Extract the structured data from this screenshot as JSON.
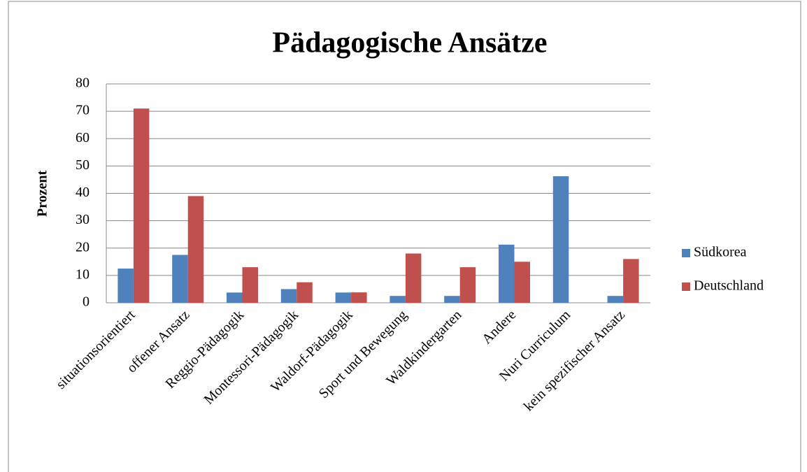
{
  "chart_data": {
    "type": "bar",
    "title": "Pädagogische Ansätze",
    "y_label": "Prozent",
    "categories": [
      "situationsorientiert",
      "offener Ansatz",
      "Reggio-Pädagogik",
      "Montessori-Pädagogik",
      "Waldorf-Pädagogik",
      "Sport und Bewegung",
      "Waldkindergarten",
      "Andere",
      "Nuri Curriculum",
      "kein spezifischer Ansatz"
    ],
    "series": [
      {
        "name": "Südkorea",
        "color": "#4f81bd",
        "values": [
          12.5,
          17.5,
          3.75,
          5,
          3.75,
          2.5,
          2.5,
          21.25,
          46.25,
          2.5
        ]
      },
      {
        "name": "Deutschland",
        "color": "#c0504d",
        "values": [
          71,
          39,
          13,
          7.5,
          3.8,
          18,
          13,
          15,
          0,
          16
        ]
      }
    ],
    "ylim": [
      0,
      80
    ],
    "yticks": [
      0,
      10,
      20,
      30,
      40,
      50,
      60,
      70,
      80
    ],
    "grid": true,
    "legend": "right"
  }
}
